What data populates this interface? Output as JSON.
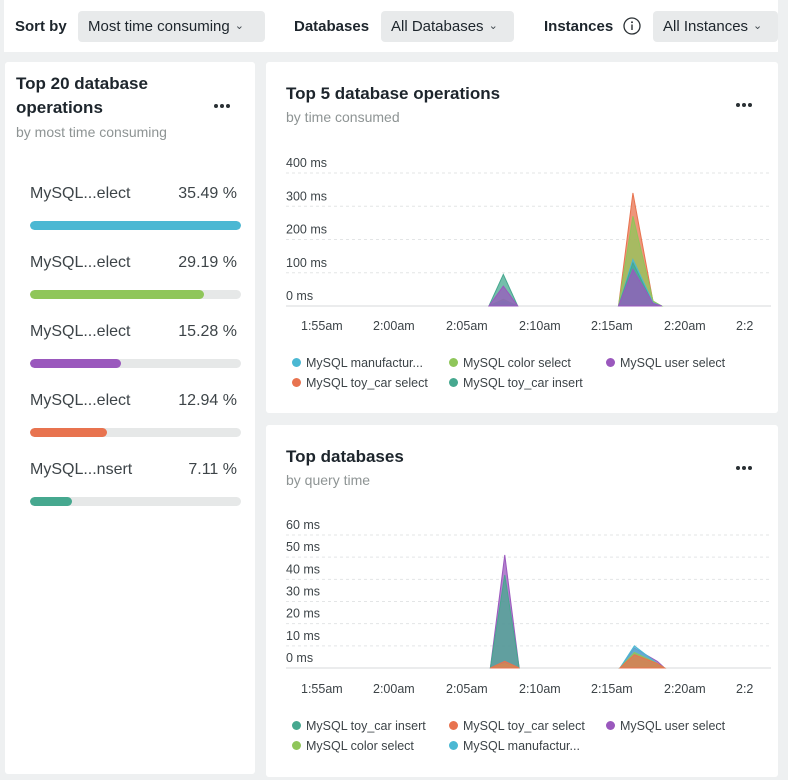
{
  "filters": {
    "sort_label": "Sort by",
    "sort_value": "Most time consuming",
    "databases_label": "Databases",
    "databases_value": "All Databases",
    "instances_label": "Instances",
    "instances_value": "All Instances"
  },
  "ops_card": {
    "title_line1": "Top 20 database",
    "title_line2": "operations",
    "subtitle": "by most time consuming",
    "items": [
      {
        "name": "MySQL...elect",
        "percent_label": "35.49 %",
        "percent": 35.49,
        "color": "#4bb8d3"
      },
      {
        "name": "MySQL...elect",
        "percent_label": "29.19 %",
        "percent": 29.19,
        "color": "#8fc65a"
      },
      {
        "name": "MySQL...elect",
        "percent_label": "15.28 %",
        "percent": 15.28,
        "color": "#9a58bd"
      },
      {
        "name": "MySQL...elect",
        "percent_label": "12.94 %",
        "percent": 12.94,
        "color": "#e8734f"
      },
      {
        "name": "MySQL...nsert",
        "percent_label": "7.11 %",
        "percent": 7.11,
        "color": "#46a88f"
      }
    ]
  },
  "top5_card": {
    "title": "Top 5 database operations",
    "subtitle": "by time consumed"
  },
  "topdb_card": {
    "title": "Top databases",
    "subtitle": "by query time"
  },
  "chart_data": [
    {
      "type": "area",
      "title": "Top 5 database operations",
      "subtitle": "by time consumed",
      "y_ticks": [
        "400 ms",
        "300 ms",
        "200 ms",
        "100 ms",
        "0 ms"
      ],
      "ylim": [
        0,
        400
      ],
      "x_ticks": [
        "1:55am",
        "2:00am",
        "2:05am",
        "2:10am",
        "2:15am",
        "2:20am",
        "2:2"
      ],
      "xlim": [
        0,
        31
      ],
      "grid": true,
      "stacked": false,
      "legend_position": "bottom",
      "series": [
        {
          "name": "MySQL manufactur...",
          "color": "#4bb8d3",
          "x": [
            11.8,
            12.8,
            13.8,
            20.8,
            21.8,
            23.2,
            23.8
          ],
          "y": [
            0,
            15,
            0,
            0,
            140,
            10,
            0
          ]
        },
        {
          "name": "MySQL color select",
          "color": "#8fc65a",
          "x": [
            11.8,
            12.8,
            13.8,
            20.8,
            21.8,
            23.2,
            23.8
          ],
          "y": [
            0,
            20,
            0,
            0,
            270,
            15,
            0
          ]
        },
        {
          "name": "MySQL user select",
          "color": "#9a58bd",
          "x": [
            11.8,
            12.8,
            13.8,
            20.8,
            21.8,
            23.2,
            23.8
          ],
          "y": [
            0,
            60,
            0,
            0,
            110,
            8,
            0
          ]
        },
        {
          "name": "MySQL toy_car select",
          "color": "#e8734f",
          "x": [
            11.8,
            12.8,
            13.8,
            20.8,
            21.8,
            23.2,
            23.8
          ],
          "y": [
            0,
            10,
            0,
            0,
            340,
            12,
            0
          ]
        },
        {
          "name": "MySQL toy_car insert",
          "color": "#46a88f",
          "x": [
            11.8,
            12.8,
            13.8,
            20.8,
            21.8,
            23.2,
            23.8
          ],
          "y": [
            0,
            95,
            0,
            0,
            130,
            5,
            0
          ]
        }
      ]
    },
    {
      "type": "area",
      "title": "Top databases",
      "subtitle": "by query time",
      "y_ticks": [
        "60 ms",
        "50 ms",
        "40 ms",
        "30 ms",
        "20 ms",
        "10 ms",
        "0 ms"
      ],
      "ylim": [
        0,
        60
      ],
      "x_ticks": [
        "1:55am",
        "2:00am",
        "2:05am",
        "2:10am",
        "2:15am",
        "2:20am",
        "2:2"
      ],
      "xlim": [
        0,
        31
      ],
      "grid": true,
      "stacked": false,
      "legend_position": "bottom",
      "series": [
        {
          "name": "MySQL toy_car insert",
          "color": "#46a88f",
          "x": [
            11.9,
            12.9,
            13.9,
            20.9,
            21.9,
            23.5,
            24.0
          ],
          "y": [
            0,
            42,
            0,
            0,
            4,
            1,
            0
          ]
        },
        {
          "name": "MySQL toy_car select",
          "color": "#e8734f",
          "x": [
            11.9,
            12.9,
            13.9,
            20.9,
            21.9,
            23.5,
            24.0
          ],
          "y": [
            0,
            3,
            0,
            0,
            6,
            2,
            0
          ]
        },
        {
          "name": "MySQL user select",
          "color": "#9a58bd",
          "x": [
            11.9,
            12.9,
            13.9,
            20.9,
            21.9,
            23.5,
            24.0
          ],
          "y": [
            0,
            51,
            0,
            0,
            9,
            3,
            0
          ]
        },
        {
          "name": "MySQL color select",
          "color": "#8fc65a",
          "x": [
            11.9,
            12.9,
            13.9,
            20.9,
            21.9,
            23.5,
            24.0
          ],
          "y": [
            0,
            2,
            0,
            0,
            7,
            2,
            0
          ]
        },
        {
          "name": "MySQL manufactur...",
          "color": "#4bb8d3",
          "x": [
            11.9,
            12.9,
            13.9,
            20.9,
            21.9,
            23.5,
            24.0
          ],
          "y": [
            0,
            1,
            0,
            0,
            10,
            2,
            0
          ]
        }
      ]
    }
  ]
}
